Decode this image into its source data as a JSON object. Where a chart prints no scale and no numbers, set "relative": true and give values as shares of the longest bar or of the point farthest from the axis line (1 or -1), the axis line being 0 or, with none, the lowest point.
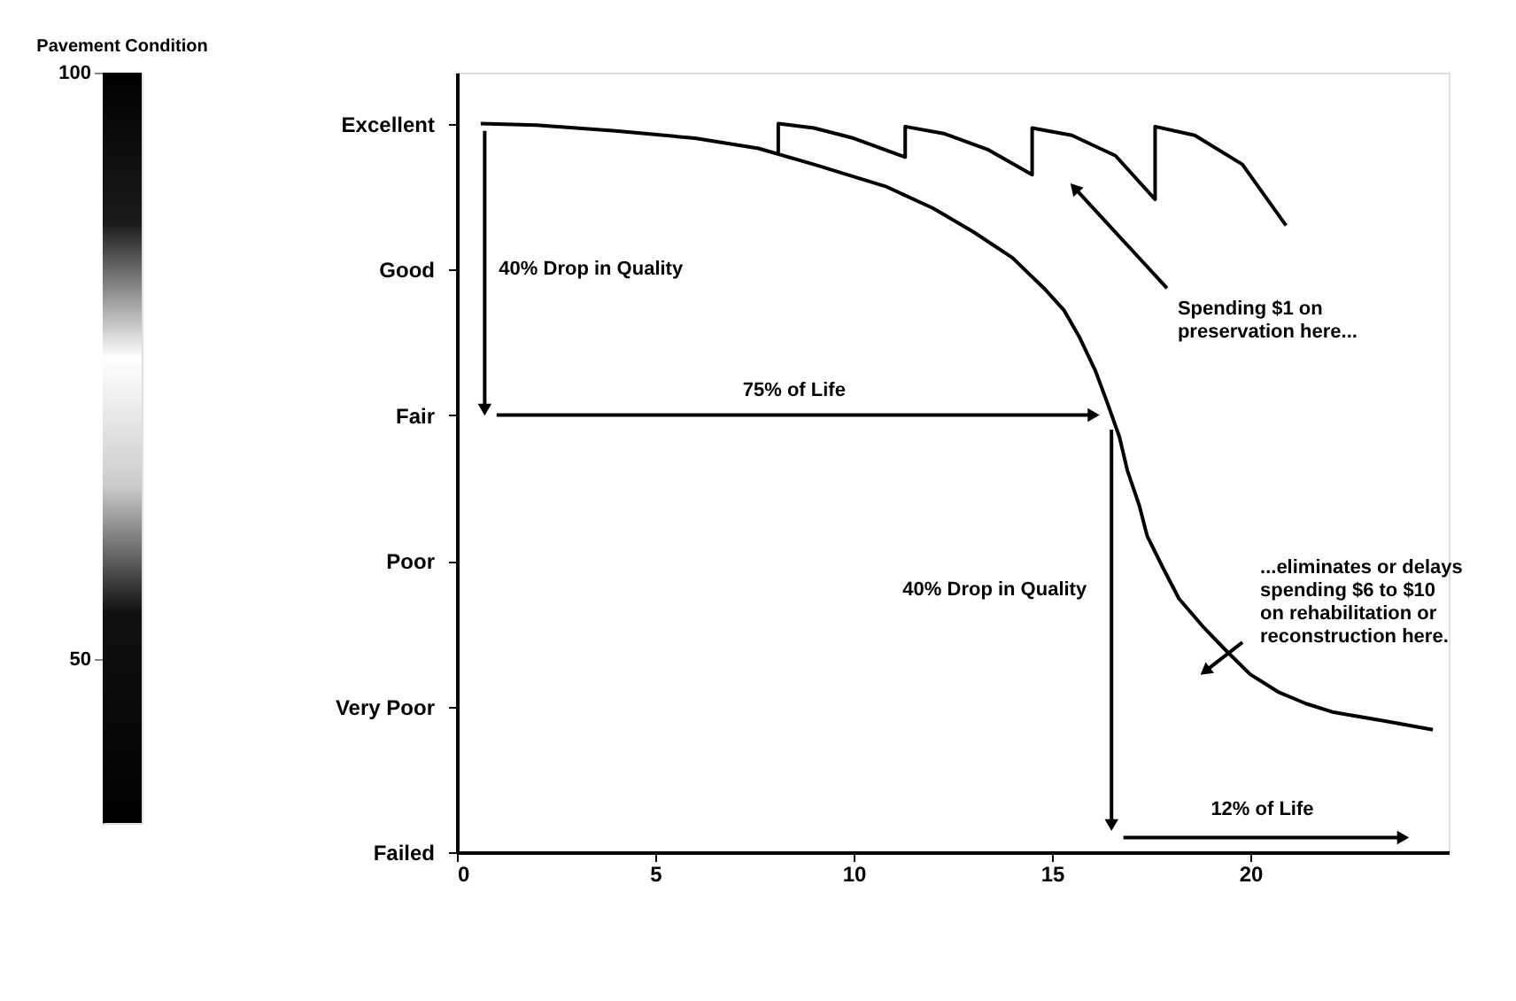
{
  "chart_data": {
    "type": "line",
    "relative": true,
    "xlim": [
      0,
      25
    ],
    "xticks": [
      0,
      5,
      10,
      15,
      20
    ],
    "y_categories": [
      "Excellent",
      "Good",
      "Fair",
      "Poor",
      "Very Poor",
      "Failed"
    ],
    "clabel": "Pavement Condition",
    "clim": [
      36,
      100
    ],
    "cticks": [
      50,
      100
    ],
    "grid": false,
    "series": [
      {
        "color": "#000000",
        "x": [
          0.6,
          2,
          4,
          6,
          7.6,
          9,
          10.8,
          12,
          13,
          14,
          14.8,
          15.3,
          15.7,
          16.1,
          16.4,
          16.7,
          16.9,
          17.2,
          17.4,
          17.8,
          18.2,
          18.8,
          19.4,
          20,
          20.7,
          21.4,
          22.1,
          23.4,
          24.6
        ],
        "values": [
          1.0,
          0.998,
          0.99,
          0.98,
          0.966,
          0.944,
          0.914,
          0.884,
          0.852,
          0.816,
          0.774,
          0.744,
          0.706,
          0.66,
          0.616,
          0.57,
          0.524,
          0.476,
          0.434,
          0.39,
          0.348,
          0.31,
          0.276,
          0.244,
          0.22,
          0.204,
          0.192,
          0.18,
          0.168
        ]
      },
      {
        "color": "#000000",
        "x": [
          8.1,
          8.1,
          9.0,
          10.0,
          11.3,
          11.3,
          12.3,
          13.4,
          14.5,
          14.5,
          15.5,
          16.6,
          17.6,
          17.6,
          18.6,
          19.8,
          20.9
        ],
        "values": [
          0.96,
          1.0,
          0.994,
          0.98,
          0.954,
          0.996,
          0.986,
          0.964,
          0.93,
          0.994,
          0.984,
          0.956,
          0.896,
          0.996,
          0.984,
          0.944,
          0.86
        ]
      },
      {
        "color": "#000000",
        "marker": "triangle",
        "x": [
          0.7,
          0.7
        ],
        "values": [
          0.99,
          0.61
        ]
      },
      {
        "color": "#000000",
        "marker": "triangle",
        "x": [
          1.0,
          16.0
        ],
        "values": [
          0.6,
          0.6
        ]
      },
      {
        "color": "#000000",
        "marker": "triangle",
        "x": [
          16.5,
          16.5
        ],
        "values": [
          0.58,
          0.04
        ]
      },
      {
        "color": "#000000",
        "marker": "triangle",
        "x": [
          16.8,
          23.8
        ],
        "values": [
          0.02,
          0.02
        ]
      },
      {
        "color": "#000000",
        "marker": "triangle",
        "x": [
          17.9,
          15.6
        ],
        "values": [
          0.774,
          0.91
        ]
      },
      {
        "color": "#000000",
        "marker": "triangle",
        "x": [
          19.8,
          18.9
        ],
        "values": [
          0.288,
          0.25
        ]
      }
    ],
    "annotations": [
      {
        "text": "40% Drop in Quality",
        "x": 0.7,
        "y": 0.8
      },
      {
        "text": "75% of Life",
        "x": 8.5,
        "y": 0.6
      },
      {
        "text": "40% Drop in Quality",
        "x": 16.5,
        "y": 0.36
      },
      {
        "text": "12% of Life",
        "x": 20.3,
        "y": 0.02
      },
      {
        "text": "Spending $1 on\npreservation here...",
        "x": 17.9,
        "y": 0.774
      },
      {
        "text": "...eliminates or delays\nspending $6 to $10\non rehabilitation or\nreconstruction here.",
        "x": 19.8,
        "y": 0.288
      }
    ]
  }
}
